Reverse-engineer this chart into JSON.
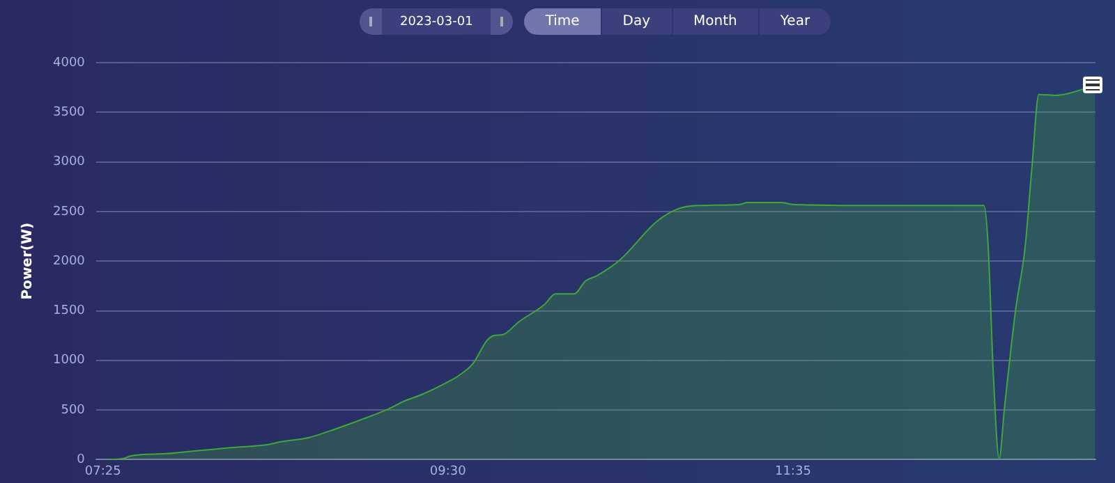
{
  "chart_data": {
    "type": "area",
    "ylabel": "Power(W)",
    "annotations": [
      "2023-03-01",
      "Time",
      "Day",
      "Month",
      "Year"
    ],
    "xlim": [
      7.375,
      13.41
    ],
    "xticks": [
      {
        "value": 7.4167,
        "label": "07:25"
      },
      {
        "value": 9.5,
        "label": "09:30"
      },
      {
        "value": 11.5833,
        "label": "11:35"
      }
    ],
    "ylim": [
      0,
      4000
    ],
    "yticks": [
      0,
      500,
      1000,
      1500,
      2000,
      2500,
      3000,
      3500,
      4000
    ],
    "grid": "y",
    "legend": false,
    "marker": "none",
    "line_style": "solid",
    "series": [
      {
        "color": "#3fa83a",
        "x": [
          7.425,
          7.535,
          7.591,
          7.798,
          7.992,
          8.186,
          8.407,
          8.49,
          8.656,
          8.822,
          8.988,
          9.126,
          9.237,
          9.348,
          9.485,
          9.568,
          9.652,
          9.735,
          9.776,
          9.832,
          9.929,
          10.081,
          10.15,
          10.205,
          10.263,
          10.33,
          10.396,
          10.537,
          10.761,
          10.894,
          11.01,
          11.259,
          11.309,
          11.508,
          11.591,
          12.139,
          12.736,
          12.761,
          12.794,
          12.828,
          12.861,
          12.927,
          12.985,
          13.027,
          13.068,
          13.168,
          13.408
        ],
        "values": [
          0,
          10,
          40,
          60,
          90,
          120,
          150,
          180,
          220,
          310,
          410,
          500,
          590,
          660,
          770,
          850,
          970,
          1200,
          1250,
          1260,
          1390,
          1560,
          1670,
          1670,
          1670,
          1800,
          1850,
          2010,
          2400,
          2530,
          2560,
          2570,
          2590,
          2590,
          2570,
          2560,
          2560,
          2180,
          830,
          10,
          530,
          1500,
          2140,
          2960,
          3680,
          3670,
          3770
        ]
      }
    ]
  }
}
